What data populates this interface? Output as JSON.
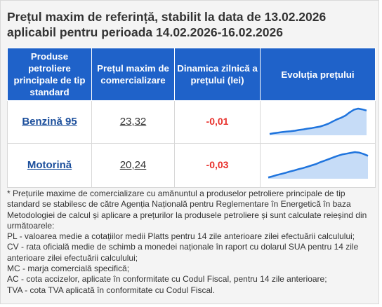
{
  "title": {
    "line1": "Prețul maxim de referință, stabilit la data de 13.02.2026",
    "line2": "aplicabil pentru perioada 14.02.2026-16.02.2026"
  },
  "table": {
    "headers": [
      "Produse petroliere principale de tip standard",
      "Prețul maxim de comercializare",
      "Dinamica zilnică a prețului (lei)",
      "Evoluția prețului"
    ],
    "rows": [
      {
        "product": "Benzină 95",
        "price": "23,32",
        "change": "-0,01",
        "trend": [
          0.05,
          0.08,
          0.1,
          0.12,
          0.14,
          0.15,
          0.17,
          0.2,
          0.22,
          0.25,
          0.27,
          0.3,
          0.33,
          0.38,
          0.44,
          0.52,
          0.6,
          0.66,
          0.74,
          0.86,
          0.96,
          1.0,
          0.97,
          0.93
        ]
      },
      {
        "product": "Motorină",
        "price": "20,24",
        "change": "-0,03",
        "trend": [
          0.05,
          0.09,
          0.14,
          0.18,
          0.22,
          0.27,
          0.31,
          0.36,
          0.4,
          0.45,
          0.5,
          0.55,
          0.62,
          0.68,
          0.74,
          0.8,
          0.86,
          0.91,
          0.94,
          0.97,
          1.0,
          0.98,
          0.93,
          0.86
        ]
      }
    ]
  },
  "notes": [
    "* Prețurile maxime de comercializare cu amănuntul a produselor petroliere principale de tip standard se stabilesc de către Agenția Națională pentru Reglementare în Energetică în baza Metodologiei de calcul și aplicare a prețurilor la produsele petroliere și sunt calculate reieșind din următoarele:",
    "PL - valoarea medie a cotațiilor medii Platts pentru 14 zile anterioare zilei efectuării calculului;",
    "CV - rata oficială medie de schimb a monedei naționale în raport cu dolarul SUA pentru 14 zile anterioare zilei efectuării calculului;",
    "MC - marja comercială specifică;",
    "AC - cota accizelor, aplicate în conformitate cu Codul Fiscal, pentru 14 zile anterioare;",
    "TVA - cota TVA aplicată în conformitate cu Codul Fiscal."
  ],
  "colors": {
    "header_bg": "#1f62c9",
    "link": "#1c4f9c",
    "change": "#e8302b",
    "spark_line": "#1f74dd",
    "spark_fill": "#c6dcf7"
  }
}
